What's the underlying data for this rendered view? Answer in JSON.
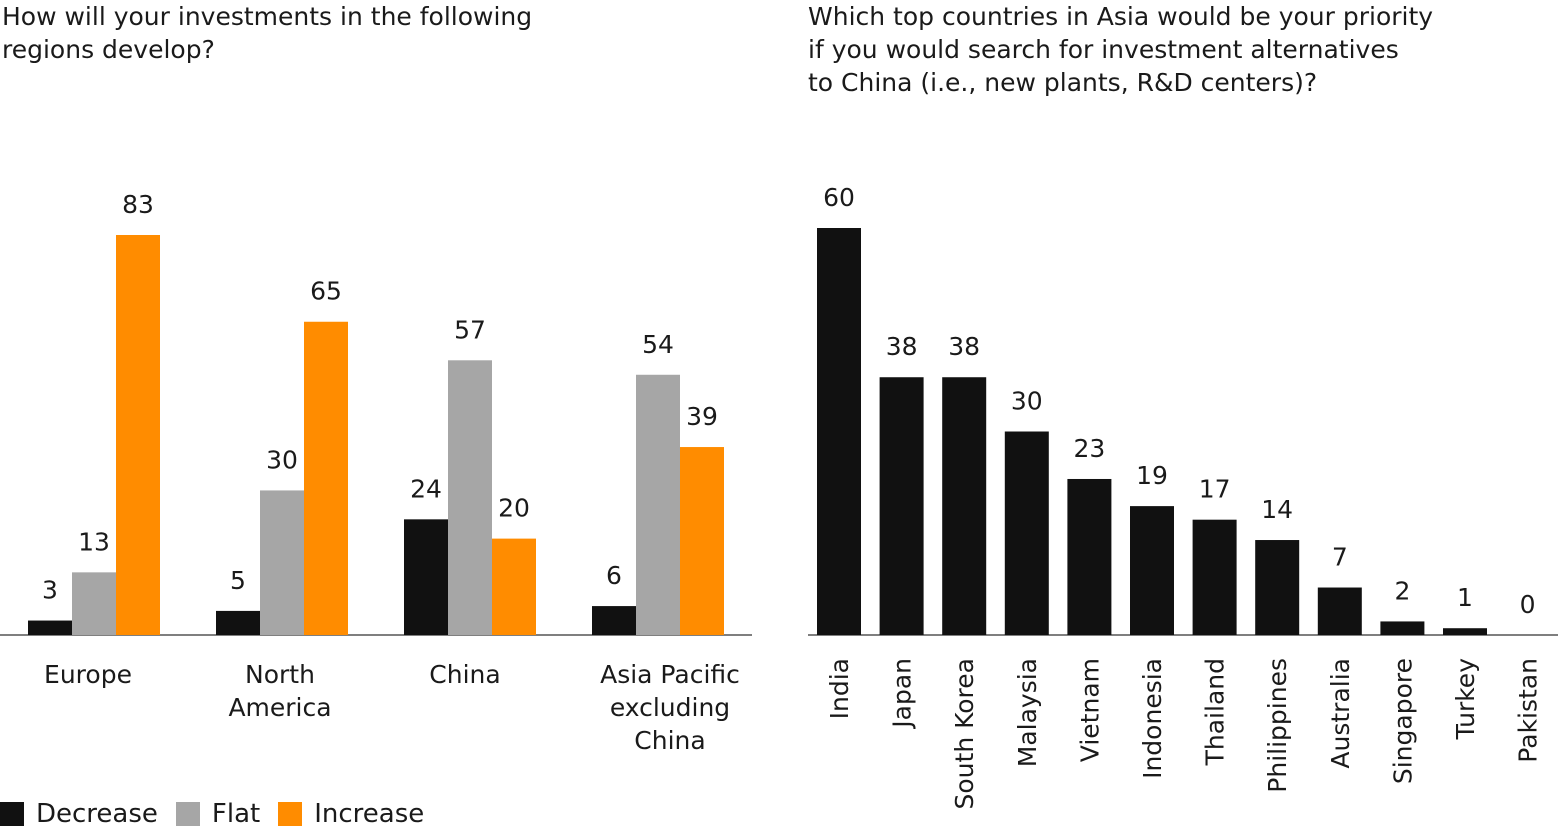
{
  "chart_data": [
    {
      "type": "bar",
      "title": "How will your investments in the following\nregions develop?",
      "categories": [
        "Europe",
        "North\nAmerica",
        "China",
        "Asia Pacific\nexcluding\nChina"
      ],
      "series": [
        {
          "name": "Decrease",
          "color": "#111111",
          "values": [
            3,
            5,
            24,
            6
          ]
        },
        {
          "name": "Flat",
          "color": "#a6a6a6",
          "values": [
            13,
            30,
            57,
            54
          ]
        },
        {
          "name": "Increase",
          "color": "#ff8c00",
          "values": [
            83,
            65,
            20,
            39
          ]
        }
      ],
      "ylim": [
        0,
        83
      ],
      "grid": false,
      "legend_position": "bottom-left"
    },
    {
      "type": "bar",
      "title": "Which top countries in Asia would be your priority\nif you would search for investment alternatives\nto China (i.e., new plants, R&D centers)?",
      "categories": [
        "India",
        "Japan",
        "South Korea",
        "Malaysia",
        "Vietnam",
        "Indonesia",
        "Thailand",
        "Philippines",
        "Australia",
        "Singapore",
        "Turkey",
        "Pakistan"
      ],
      "values": [
        60,
        38,
        38,
        30,
        23,
        19,
        17,
        14,
        7,
        2,
        1,
        0
      ],
      "color": "#111111",
      "ylim": [
        0,
        60
      ],
      "grid": false
    }
  ]
}
